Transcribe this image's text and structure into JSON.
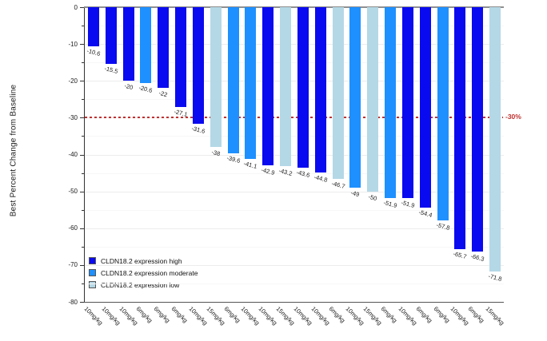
{
  "chart_data": {
    "type": "bar",
    "subtype": "waterfall",
    "title": "",
    "xlabel": "",
    "ylabel": "Best Percent Change from Baseline",
    "ylim": [
      -80,
      0
    ],
    "yticks": [
      0,
      -10,
      -20,
      -30,
      -40,
      -50,
      -60,
      -70,
      -80
    ],
    "minor_tick_step": 5,
    "grid": "horizontal-faint",
    "reference_line": {
      "value": -30,
      "label": "-30%",
      "color": "#c03030",
      "style": "dashed"
    },
    "groups": {
      "high": {
        "label": "CLDN18.2 expression high",
        "color": "#0a0af0"
      },
      "moderate": {
        "label": "CLDN18.2 expression moderate",
        "color": "#1e90ff"
      },
      "low": {
        "label": "CLDN18.2 expression low",
        "color": "#b4d8e6"
      }
    },
    "legend_order": [
      "high",
      "moderate",
      "low"
    ],
    "legend_position": "bottom-left-inside",
    "bars": [
      {
        "x": "10mg/kg",
        "value": -10.6,
        "group": "high"
      },
      {
        "x": "10mg/kg",
        "value": -15.5,
        "group": "high"
      },
      {
        "x": "10mg/kg",
        "value": -20,
        "group": "high"
      },
      {
        "x": "6mg/kg",
        "value": -20.6,
        "group": "moderate"
      },
      {
        "x": "6mg/kg",
        "value": -22,
        "group": "high"
      },
      {
        "x": "6mg/kg",
        "value": -27.1,
        "group": "high"
      },
      {
        "x": "10mg/kg",
        "value": -31.6,
        "group": "high"
      },
      {
        "x": "15mg/kg",
        "value": -38,
        "group": "low"
      },
      {
        "x": "6mg/kg",
        "value": -39.6,
        "group": "moderate"
      },
      {
        "x": "10mg/kg",
        "value": -41.1,
        "group": "moderate"
      },
      {
        "x": "10mg/kg",
        "value": -42.9,
        "group": "high"
      },
      {
        "x": "15mg/kg",
        "value": -43.2,
        "group": "low"
      },
      {
        "x": "10mg/kg",
        "value": -43.6,
        "group": "high"
      },
      {
        "x": "10mg/kg",
        "value": -44.8,
        "group": "high"
      },
      {
        "x": "6mg/kg",
        "value": -46.7,
        "group": "low"
      },
      {
        "x": "10mg/kg",
        "value": -49,
        "group": "moderate"
      },
      {
        "x": "15mg/kg",
        "value": -50,
        "group": "low"
      },
      {
        "x": "6mg/kg",
        "value": -51.9,
        "group": "moderate"
      },
      {
        "x": "10mg/kg",
        "value": -51.9,
        "group": "high"
      },
      {
        "x": "6mg/kg",
        "value": -54.4,
        "group": "high"
      },
      {
        "x": "6mg/kg",
        "value": -57.8,
        "group": "moderate"
      },
      {
        "x": "10mg/kg",
        "value": -65.7,
        "group": "high"
      },
      {
        "x": "6mg/kg",
        "value": -66.3,
        "group": "high"
      },
      {
        "x": "15mg/kg",
        "value": -71.8,
        "group": "low"
      }
    ]
  }
}
